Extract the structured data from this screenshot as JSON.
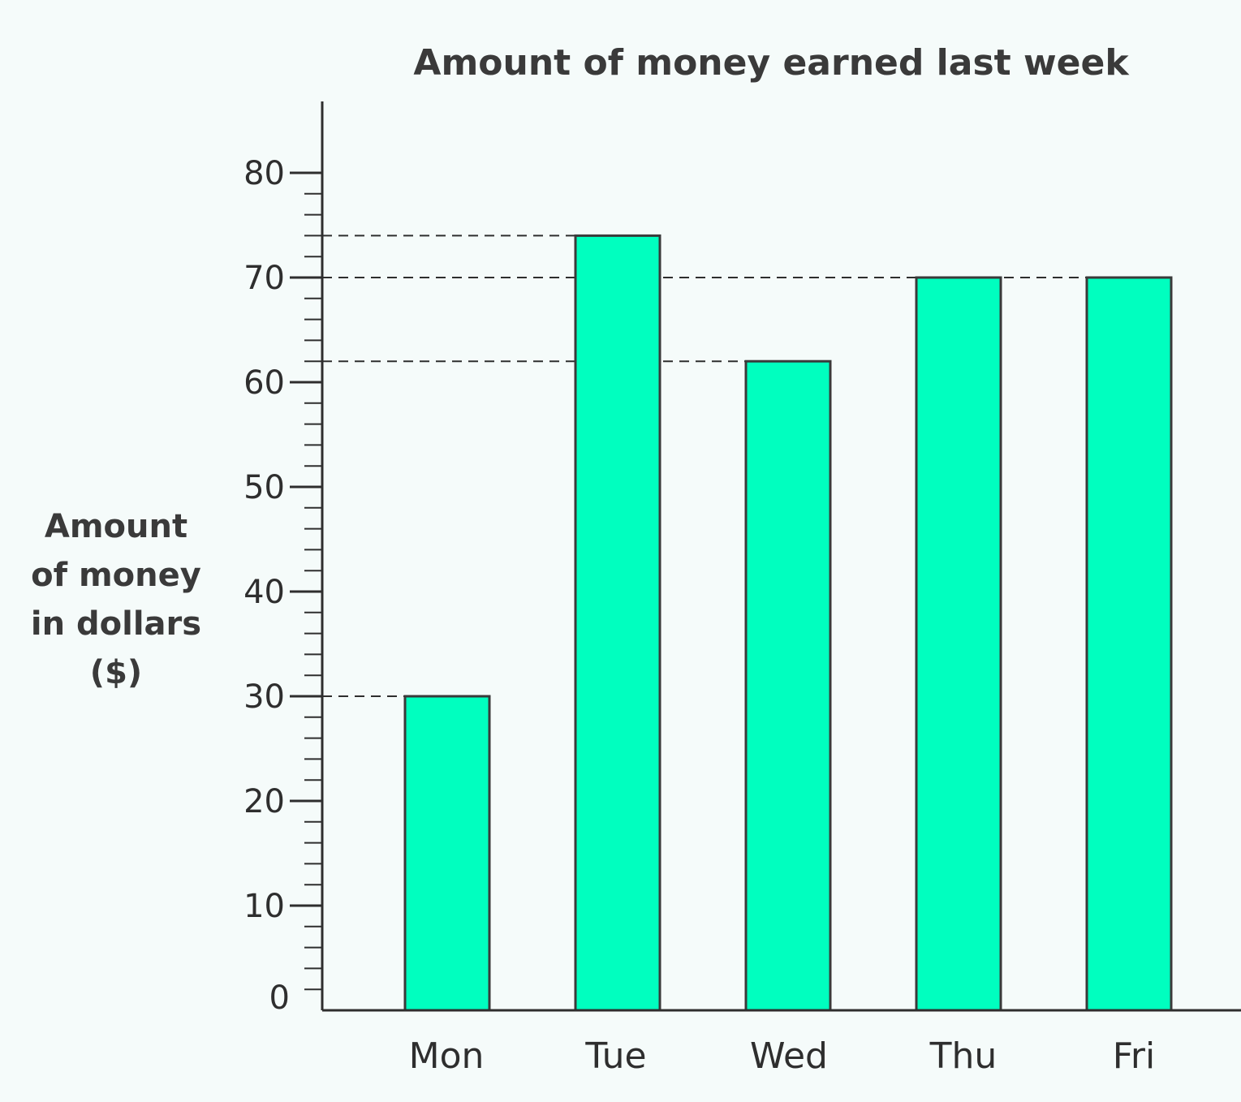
{
  "chart_data": {
    "type": "bar",
    "title": "Amount of money earned last week",
    "xlabel": "",
    "ylabel": [
      "Amount",
      "of money",
      "in dollars",
      "($)"
    ],
    "categories": [
      "Mon",
      "Tue",
      "Wed",
      "Thu",
      "Fri"
    ],
    "values": [
      30,
      74,
      62,
      70,
      70
    ],
    "ylim": [
      0,
      80
    ],
    "yticks": [
      0,
      10,
      20,
      30,
      40,
      50,
      60,
      70,
      80
    ],
    "minor_tick_step": 2,
    "reference_lines": [
      30,
      62,
      70,
      74
    ],
    "grid": false,
    "legend": "none",
    "colors": {
      "bar_fill": "#00ffbf",
      "bar_stroke": "#3a3a3a",
      "axis": "#2e2e2e",
      "text": "#3a3a3a"
    }
  }
}
